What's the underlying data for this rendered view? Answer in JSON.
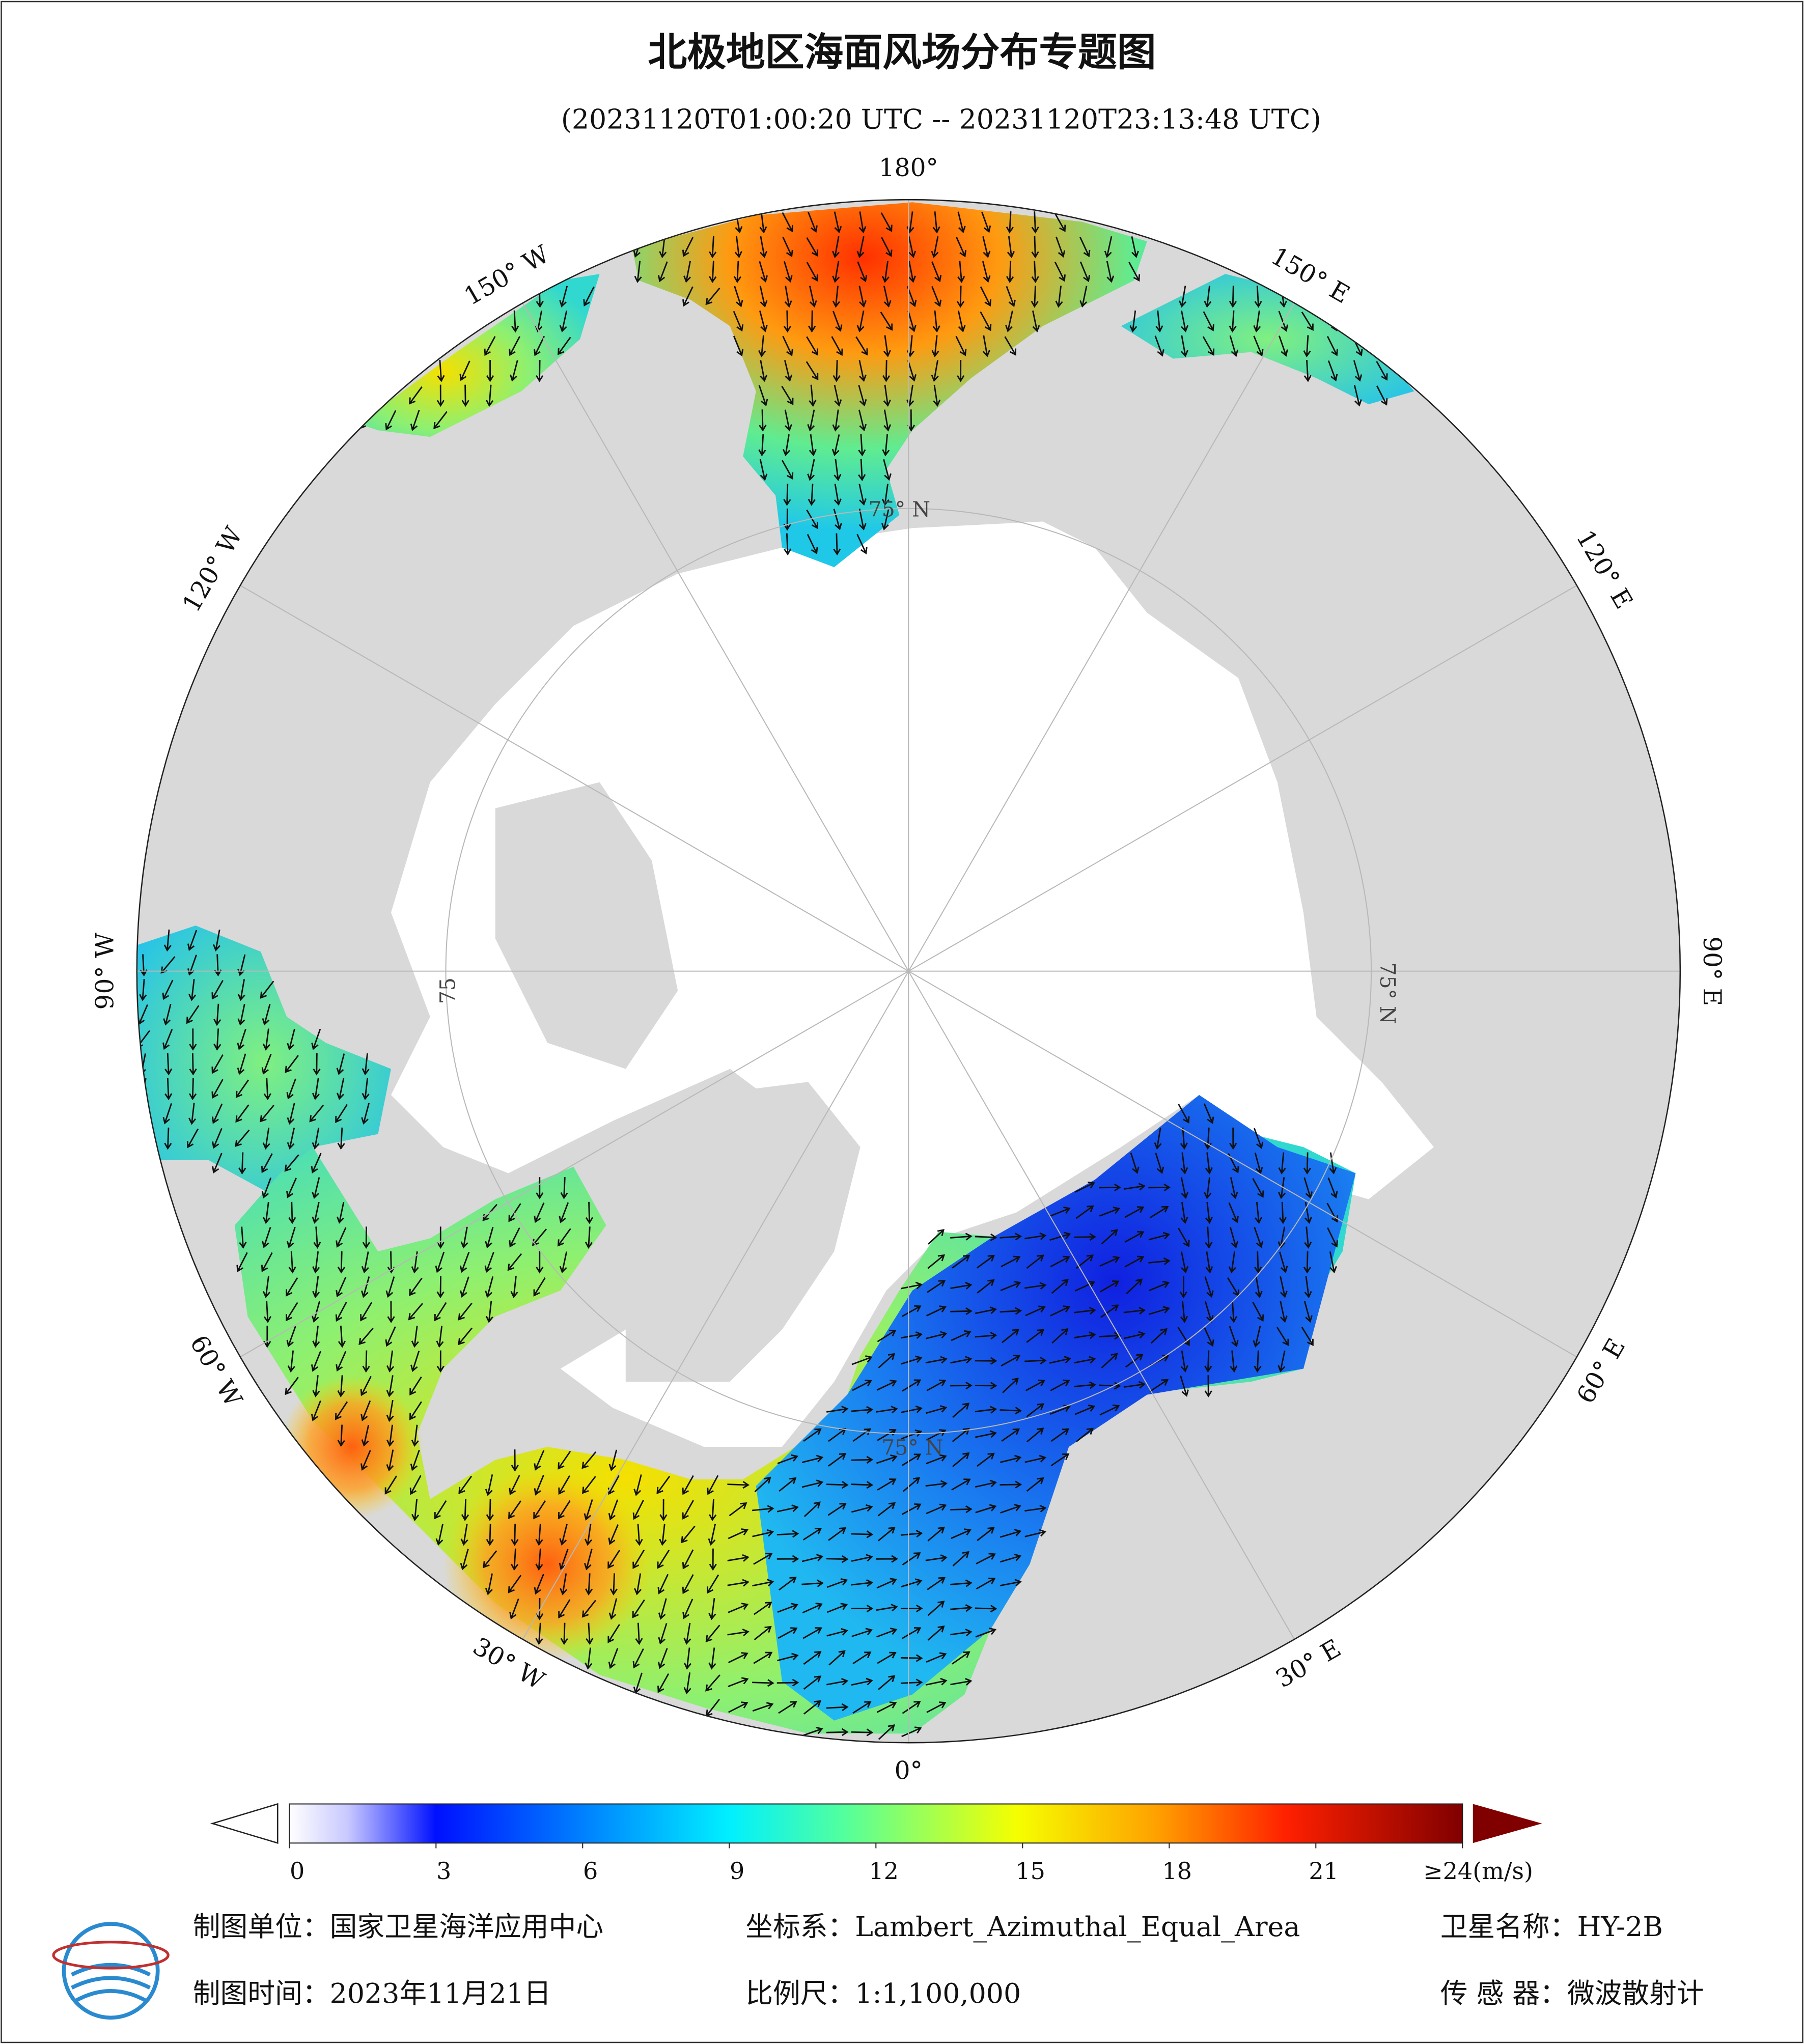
{
  "header": {
    "title": "北极地区海面风场分布专题图",
    "subtitle": "(20231120T01:00:20 UTC -- 20231120T23:13:48 UTC)"
  },
  "map": {
    "lon_labels": [
      "180°",
      "150° E",
      "120° E",
      "90° E",
      "60° E",
      "30° E",
      "0°",
      "30° W",
      "60° W",
      "90° W",
      "120° W",
      "150° W"
    ],
    "lat_labels": [
      "75° N",
      "75° N",
      "75° N",
      "75"
    ]
  },
  "colorbar": {
    "range": [
      0,
      24
    ],
    "ticks": [
      0,
      3,
      6,
      9,
      12,
      15,
      18,
      21,
      {
        "value": 24,
        "label": "≥24(m/s)"
      }
    ]
  },
  "footer": {
    "unit": "制图单位：国家卫星海洋应用中心",
    "crs": "坐标系：Lambert_Azimuthal_Equal_Area",
    "satellite": "卫星名称：HY-2B",
    "date": "制图时间：2023年11月21日",
    "scale": "比例尺：1:1,100,000",
    "sensor": "传 感 器：微波散射计"
  }
}
